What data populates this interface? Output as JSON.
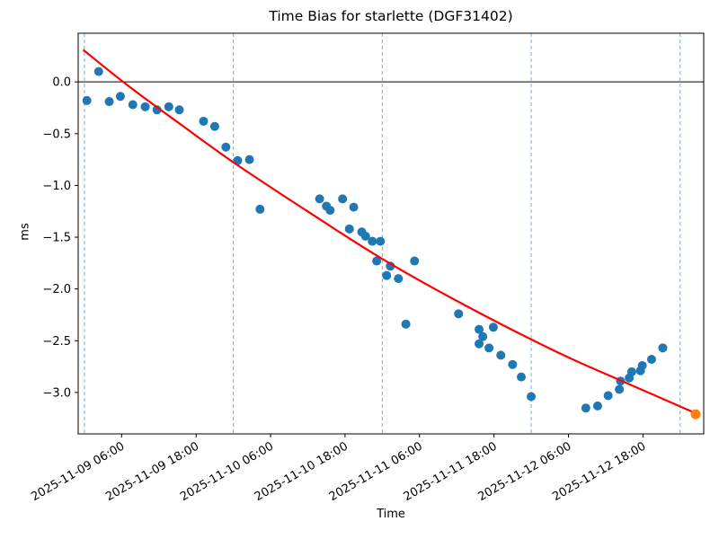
{
  "chart_data": {
    "type": "scatter",
    "title": "Time Bias for starlette (DGF31402)",
    "xlabel": "Time",
    "ylabel": "ms",
    "x_axis_unit": "hours since 2025-11-09 00:00",
    "xlim_hours": [
      -1.0,
      99.8
    ],
    "ylim": [
      -3.4,
      0.47
    ],
    "grid": "vertical-dashed",
    "legend": "none",
    "x_ticks": [
      {
        "hours": 6,
        "label": "2025-11-09 06:00"
      },
      {
        "hours": 18,
        "label": "2025-11-09 18:00"
      },
      {
        "hours": 30,
        "label": "2025-11-10 06:00"
      },
      {
        "hours": 42,
        "label": "2025-11-10 18:00"
      },
      {
        "hours": 54,
        "label": "2025-11-11 06:00"
      },
      {
        "hours": 66,
        "label": "2025-11-11 18:00"
      },
      {
        "hours": 78,
        "label": "2025-11-12 06:00"
      },
      {
        "hours": 90,
        "label": "2025-11-12 18:00"
      }
    ],
    "y_ticks": [
      {
        "value": 0.0,
        "label": "0.0"
      },
      {
        "value": -0.5,
        "label": "−0.5"
      },
      {
        "value": -1.0,
        "label": "−1.0"
      },
      {
        "value": -1.5,
        "label": "−1.5"
      },
      {
        "value": -2.0,
        "label": "−2.0"
      },
      {
        "value": -2.5,
        "label": "−2.5"
      },
      {
        "value": -3.0,
        "label": "−3.0"
      }
    ],
    "gridlines_hours": [
      0,
      24,
      48,
      72,
      96
    ],
    "zero_line": 0.0,
    "series": [
      {
        "name": "time-bias-observations",
        "type": "scatter",
        "color": "#1f77b4",
        "points": [
          [
            0.4,
            -0.18
          ],
          [
            2.3,
            0.1
          ],
          [
            4.0,
            -0.19
          ],
          [
            5.8,
            -0.14
          ],
          [
            7.8,
            -0.22
          ],
          [
            9.8,
            -0.24
          ],
          [
            11.7,
            -0.27
          ],
          [
            13.6,
            -0.24
          ],
          [
            15.3,
            -0.27
          ],
          [
            19.2,
            -0.38
          ],
          [
            21.0,
            -0.43
          ],
          [
            22.8,
            -0.63
          ],
          [
            24.7,
            -0.76
          ],
          [
            26.6,
            -0.75
          ],
          [
            28.3,
            -1.23
          ],
          [
            37.9,
            -1.13
          ],
          [
            39.0,
            -1.2
          ],
          [
            39.6,
            -1.24
          ],
          [
            41.6,
            -1.13
          ],
          [
            43.4,
            -1.21
          ],
          [
            42.7,
            -1.42
          ],
          [
            44.7,
            -1.45
          ],
          [
            45.3,
            -1.49
          ],
          [
            46.4,
            -1.54
          ],
          [
            47.7,
            -1.54
          ],
          [
            47.1,
            -1.73
          ],
          [
            49.3,
            -1.78
          ],
          [
            48.7,
            -1.87
          ],
          [
            50.6,
            -1.9
          ],
          [
            53.2,
            -1.73
          ],
          [
            51.8,
            -2.34
          ],
          [
            60.3,
            -2.24
          ],
          [
            63.6,
            -2.39
          ],
          [
            64.2,
            -2.46
          ],
          [
            63.6,
            -2.53
          ],
          [
            65.9,
            -2.37
          ],
          [
            65.2,
            -2.57
          ],
          [
            67.1,
            -2.64
          ],
          [
            69.0,
            -2.73
          ],
          [
            70.4,
            -2.85
          ],
          [
            72.0,
            -3.04
          ],
          [
            80.8,
            -3.15
          ],
          [
            82.7,
            -3.13
          ],
          [
            84.4,
            -3.03
          ],
          [
            86.2,
            -2.97
          ],
          [
            86.4,
            -2.89
          ],
          [
            87.8,
            -2.86
          ],
          [
            88.2,
            -2.8
          ],
          [
            89.6,
            -2.79
          ],
          [
            89.9,
            -2.74
          ],
          [
            91.4,
            -2.68
          ],
          [
            93.2,
            -2.57
          ]
        ]
      },
      {
        "name": "predicted-point",
        "type": "scatter",
        "color": "#ff7f0e",
        "points": [
          [
            98.5,
            -3.21
          ]
        ]
      },
      {
        "name": "polynomial-fit",
        "type": "line",
        "color": "#ff0000",
        "points": [
          [
            -0.2,
            0.31
          ],
          [
            6.9,
            -0.03
          ],
          [
            15.5,
            -0.41
          ],
          [
            24.1,
            -0.78
          ],
          [
            35.7,
            -1.24
          ],
          [
            48.0,
            -1.71
          ],
          [
            61.4,
            -2.16
          ],
          [
            76.2,
            -2.61
          ],
          [
            87.8,
            -2.92
          ],
          [
            98.5,
            -3.2
          ]
        ]
      }
    ],
    "colors": {
      "scatter": "#1f77b4",
      "highlight": "#ff7f0e",
      "fit_line": "#ff0000",
      "gridline": "#77aed6",
      "axis": "#000000",
      "background": "#ffffff"
    }
  }
}
